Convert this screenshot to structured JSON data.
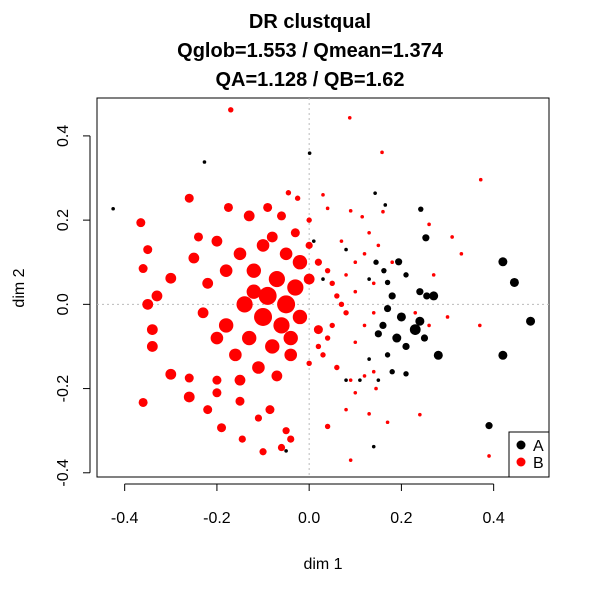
{
  "chart_data": {
    "type": "scatter",
    "title_lines": [
      "DR clustqual",
      "Qglob=1.553 / Qmean=1.374",
      "QA=1.128 / QB=1.62"
    ],
    "xlabel": "dim 1",
    "ylabel": "dim 2",
    "xlim": [
      -0.46,
      0.52
    ],
    "ylim": [
      -0.41,
      0.49
    ],
    "xticks": [
      -0.4,
      -0.2,
      0.0,
      0.2,
      0.4
    ],
    "xtick_labels": [
      "-0.4",
      "-0.2",
      "0.0",
      "0.2",
      "0.4"
    ],
    "yticks": [
      -0.4,
      -0.2,
      0.0,
      0.2,
      0.4
    ],
    "ytick_labels": [
      "-0.4",
      "-0.2",
      "0.0",
      "0.2",
      "0.4"
    ],
    "reference_lines": {
      "x": 0,
      "y": 0,
      "style": "dotted",
      "color": "#bbbbbb"
    },
    "legend": {
      "position": "bottom-right",
      "items": [
        {
          "label": "A",
          "color": "#000000"
        },
        {
          "label": "B",
          "color": "#ff0000"
        }
      ]
    },
    "series": [
      {
        "name": "A",
        "color": "#000000",
        "points": [
          [
            -0.425,
            0.227,
            2
          ],
          [
            -0.227,
            0.338,
            2
          ],
          [
            0.001,
            0.359,
            2
          ],
          [
            0.143,
            0.264,
            2
          ],
          [
            0.165,
            0.236,
            2
          ],
          [
            0.242,
            0.226,
            3
          ],
          [
            0.253,
            0.158,
            4
          ],
          [
            0.194,
            0.101,
            4
          ],
          [
            0.145,
            0.1,
            3
          ],
          [
            0.162,
            0.08,
            3
          ],
          [
            0.13,
            0.06,
            2
          ],
          [
            0.17,
            0.052,
            3
          ],
          [
            0.21,
            0.07,
            3
          ],
          [
            0.24,
            0.03,
            4
          ],
          [
            0.255,
            0.02,
            4
          ],
          [
            0.27,
            0.02,
            5
          ],
          [
            0.18,
            0.02,
            4
          ],
          [
            0.17,
            -0.01,
            4
          ],
          [
            0.2,
            -0.03,
            5
          ],
          [
            0.16,
            -0.05,
            4
          ],
          [
            0.24,
            -0.04,
            5
          ],
          [
            0.23,
            -0.06,
            6
          ],
          [
            0.19,
            -0.08,
            5
          ],
          [
            0.15,
            -0.07,
            4
          ],
          [
            0.21,
            -0.1,
            4
          ],
          [
            0.17,
            -0.12,
            3
          ],
          [
            0.25,
            -0.08,
            4
          ],
          [
            0.28,
            -0.121,
            5
          ],
          [
            0.18,
            -0.16,
            3
          ],
          [
            0.21,
            -0.165,
            3
          ],
          [
            0.13,
            -0.13,
            2
          ],
          [
            0.11,
            -0.18,
            2
          ],
          [
            0.08,
            -0.18,
            2
          ],
          [
            0.15,
            -0.18,
            2
          ],
          [
            0.42,
            0.101,
            5
          ],
          [
            0.445,
            0.052,
            5
          ],
          [
            0.48,
            -0.04,
            5
          ],
          [
            0.42,
            -0.121,
            5
          ],
          [
            0.39,
            -0.288,
            4
          ],
          [
            0.14,
            -0.338,
            2
          ],
          [
            -0.05,
            -0.348,
            2
          ],
          [
            0.03,
            0.06,
            2
          ],
          [
            0.08,
            0.13,
            2
          ],
          [
            0.01,
            0.15,
            2
          ]
        ]
      },
      {
        "name": "B",
        "color": "#ff0000",
        "points": [
          [
            -0.17,
            0.462,
            3
          ],
          [
            0.088,
            0.443,
            2
          ],
          [
            0.158,
            0.361,
            2
          ],
          [
            0.372,
            0.296,
            2
          ],
          [
            -0.045,
            0.265,
            3
          ],
          [
            -0.025,
            0.252,
            3
          ],
          [
            0.03,
            0.26,
            2
          ],
          [
            0.04,
            0.228,
            2
          ],
          [
            0.09,
            0.222,
            2
          ],
          [
            0.16,
            0.22,
            2
          ],
          [
            0.115,
            0.208,
            2
          ],
          [
            0.26,
            0.19,
            2
          ],
          [
            -0.365,
            0.194,
            5
          ],
          [
            -0.26,
            0.252,
            5
          ],
          [
            -0.175,
            0.23,
            5
          ],
          [
            -0.13,
            0.21,
            6
          ],
          [
            -0.09,
            0.23,
            5
          ],
          [
            -0.06,
            0.21,
            5
          ],
          [
            -0.2,
            0.15,
            6
          ],
          [
            -0.15,
            0.12,
            7
          ],
          [
            -0.1,
            0.14,
            7
          ],
          [
            -0.05,
            0.12,
            7
          ],
          [
            -0.02,
            0.1,
            8
          ],
          [
            -0.12,
            0.08,
            8
          ],
          [
            -0.07,
            0.06,
            9
          ],
          [
            -0.03,
            0.04,
            9
          ],
          [
            -0.09,
            0.02,
            10
          ],
          [
            -0.05,
            0.0,
            10
          ],
          [
            -0.14,
            0.0,
            9
          ],
          [
            -0.1,
            -0.03,
            10
          ],
          [
            -0.06,
            -0.05,
            9
          ],
          [
            -0.02,
            -0.03,
            8
          ],
          [
            -0.18,
            -0.05,
            8
          ],
          [
            -0.13,
            -0.08,
            8
          ],
          [
            -0.08,
            -0.1,
            8
          ],
          [
            -0.04,
            -0.12,
            7
          ],
          [
            -0.16,
            -0.12,
            7
          ],
          [
            -0.11,
            -0.15,
            7
          ],
          [
            -0.07,
            -0.17,
            6
          ],
          [
            -0.2,
            -0.08,
            7
          ],
          [
            -0.23,
            -0.02,
            6
          ],
          [
            -0.22,
            0.05,
            6
          ],
          [
            -0.18,
            0.08,
            7
          ],
          [
            -0.25,
            0.11,
            6
          ],
          [
            -0.3,
            0.062,
            6
          ],
          [
            -0.33,
            0.02,
            6
          ],
          [
            -0.35,
            0.0,
            6
          ],
          [
            -0.34,
            -0.06,
            6
          ],
          [
            -0.34,
            -0.1,
            6
          ],
          [
            -0.3,
            -0.166,
            6
          ],
          [
            -0.26,
            -0.22,
            6
          ],
          [
            -0.2,
            -0.18,
            5
          ],
          [
            -0.22,
            -0.25,
            5
          ],
          [
            -0.15,
            -0.23,
            5
          ],
          [
            -0.085,
            -0.25,
            5
          ],
          [
            -0.19,
            -0.293,
            5
          ],
          [
            -0.26,
            -0.175,
            5
          ],
          [
            -0.11,
            -0.27,
            4
          ],
          [
            -0.05,
            -0.3,
            4
          ],
          [
            -0.04,
            -0.32,
            4
          ],
          [
            -0.145,
            -0.32,
            4
          ],
          [
            -0.1,
            -0.35,
            4
          ],
          [
            -0.36,
            -0.233,
            5
          ],
          [
            -0.06,
            -0.34,
            4
          ],
          [
            -0.35,
            0.13,
            5
          ],
          [
            -0.36,
            0.085,
            5
          ],
          [
            -0.03,
            0.17,
            5
          ],
          [
            0.0,
            0.14,
            4
          ],
          [
            0.02,
            0.1,
            4
          ],
          [
            0.04,
            0.08,
            3
          ],
          [
            0.05,
            0.05,
            3
          ],
          [
            0.06,
            0.02,
            3
          ],
          [
            0.07,
            0.0,
            3
          ],
          [
            0.08,
            -0.02,
            3
          ],
          [
            0.05,
            -0.05,
            3
          ],
          [
            0.04,
            -0.08,
            3
          ],
          [
            0.02,
            -0.1,
            3
          ],
          [
            0.03,
            -0.12,
            3
          ],
          [
            0.0,
            -0.14,
            3
          ],
          [
            0.06,
            -0.15,
            3
          ],
          [
            0.1,
            -0.09,
            2
          ],
          [
            0.12,
            -0.05,
            2
          ],
          [
            0.14,
            -0.02,
            2
          ],
          [
            0.1,
            0.03,
            2
          ],
          [
            0.08,
            0.07,
            2
          ],
          [
            0.1,
            0.1,
            2
          ],
          [
            0.12,
            0.12,
            2
          ],
          [
            0.07,
            0.15,
            2
          ],
          [
            0.13,
            0.17,
            2
          ],
          [
            0.15,
            0.14,
            2
          ],
          [
            0.18,
            0.1,
            2
          ],
          [
            0.14,
            0.05,
            2
          ],
          [
            0.3,
            -0.03,
            2
          ],
          [
            0.26,
            -0.05,
            2
          ],
          [
            0.23,
            -0.02,
            2
          ],
          [
            0.27,
            0.07,
            2
          ],
          [
            0.31,
            0.16,
            2
          ],
          [
            0.33,
            0.12,
            2
          ],
          [
            0.37,
            -0.05,
            2
          ],
          [
            0.12,
            -0.17,
            2
          ],
          [
            0.14,
            -0.16,
            2
          ],
          [
            0.09,
            -0.18,
            2
          ],
          [
            0.1,
            -0.21,
            2
          ],
          [
            0.145,
            -0.2,
            2
          ],
          [
            0.17,
            -0.28,
            2
          ],
          [
            0.24,
            -0.262,
            2
          ],
          [
            0.13,
            -0.26,
            2
          ],
          [
            0.08,
            -0.25,
            2
          ],
          [
            0.04,
            -0.29,
            3
          ],
          [
            0.09,
            -0.37,
            2
          ],
          [
            0.39,
            -0.36,
            2
          ],
          [
            0.0,
            0.2,
            3
          ],
          [
            -0.12,
            0.03,
            8
          ],
          [
            -0.04,
            -0.08,
            8
          ],
          [
            -0.08,
            0.16,
            6
          ],
          [
            -0.15,
            -0.18,
            6
          ],
          [
            0.02,
            -0.06,
            5
          ],
          [
            0.0,
            0.06,
            6
          ],
          [
            -0.24,
            0.16,
            5
          ],
          [
            -0.2,
            -0.21,
            5
          ]
        ]
      }
    ]
  }
}
